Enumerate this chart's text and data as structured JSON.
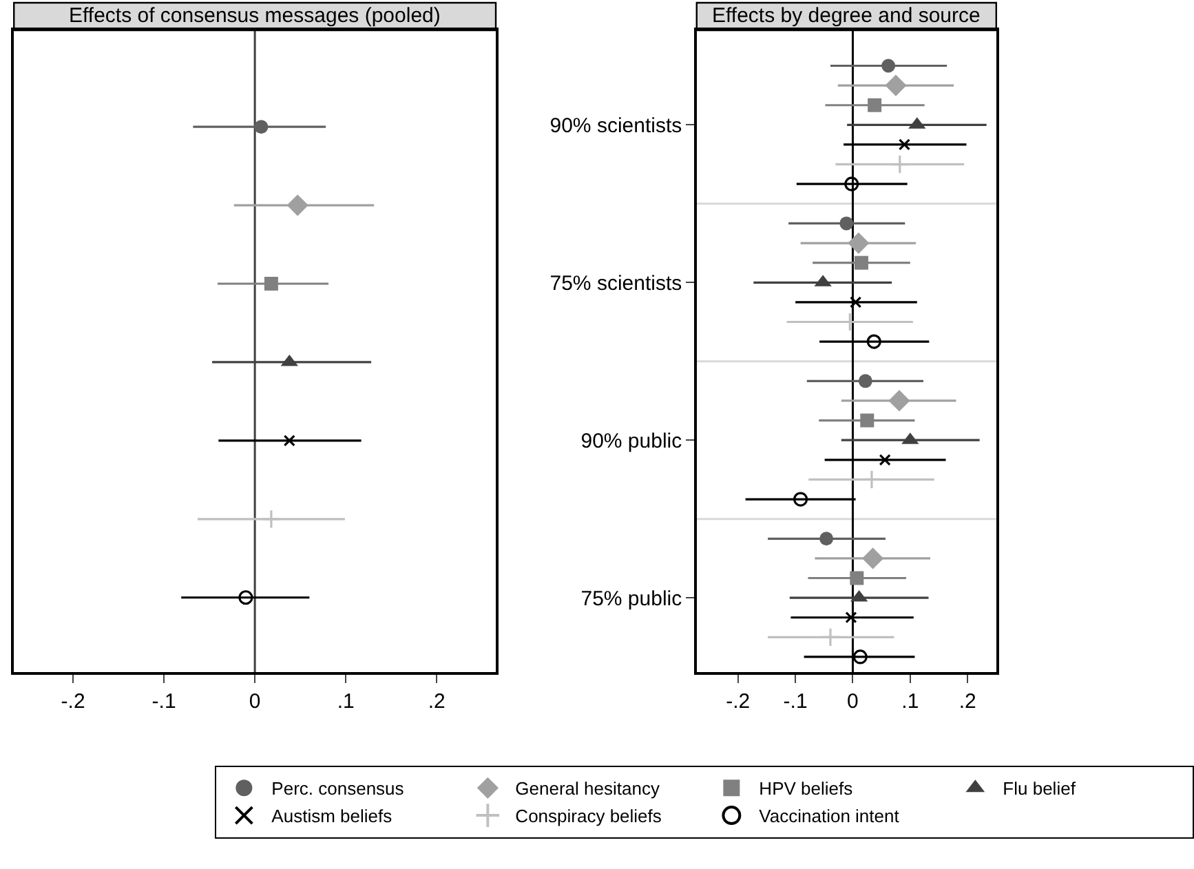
{
  "chart_data": [
    {
      "type": "scatter",
      "title": "Effects of consensus messages (pooled)",
      "orientation": "horizontal",
      "categories": [
        null
      ],
      "tick_labels": "x",
      "grid": false,
      "legend": "bottom",
      "xlim": [
        -0.265,
        0.265
      ],
      "xticks": [
        {
          "value": -0.2,
          "label": "-.2"
        },
        {
          "value": -0.1,
          "label": "-.1"
        },
        0,
        {
          "value": 0.1,
          "label": ".1"
        },
        {
          "value": 0.2,
          "label": ".2"
        }
      ],
      "ref_lines": [
        {
          "axis": "x",
          "value": 0,
          "color": "#404040"
        }
      ],
      "series": [
        {
          "name": "Perc. consensus",
          "color": "#606060",
          "marker": "circle",
          "values": [
            0.007
          ],
          "errors": [
            [
              -0.068,
              0.078
            ]
          ]
        },
        {
          "name": "General hesitancy",
          "color": "#a0a0a0",
          "marker": "diamond",
          "values": [
            0.047
          ],
          "errors": [
            [
              -0.023,
              0.131
            ]
          ]
        },
        {
          "name": "HPV beliefs",
          "color": "#808080",
          "marker": "square",
          "values": [
            0.018
          ],
          "errors": [
            [
              -0.041,
              0.081
            ]
          ]
        },
        {
          "name": "Flu belief",
          "color": "#404040",
          "marker": "triangle",
          "values": [
            0.038
          ],
          "errors": [
            [
              -0.047,
              0.128
            ]
          ]
        },
        {
          "name": "Austism beliefs",
          "color": "#000000",
          "marker": "cross",
          "values": [
            0.038
          ],
          "errors": [
            [
              -0.04,
              0.117
            ]
          ]
        },
        {
          "name": "Conspiracy beliefs",
          "color": "#c0c0c0",
          "marker": "plus",
          "values": [
            0.018
          ],
          "errors": [
            [
              -0.063,
              0.099
            ]
          ]
        },
        {
          "name": "Vaccination intent",
          "color": "#000000",
          "marker": "circle-open",
          "values": [
            -0.01
          ],
          "errors": [
            [
              -0.081,
              0.06
            ]
          ]
        }
      ]
    },
    {
      "type": "scatter",
      "title": "Effects by degree and source",
      "orientation": "horizontal",
      "categories": [
        "90% scientists",
        "75% scientists",
        "90% public",
        "75% public"
      ],
      "grid": false,
      "xlim": [
        -0.272,
        0.25
      ],
      "xticks": [
        {
          "value": -0.2,
          "label": "-.2"
        },
        {
          "value": -0.1,
          "label": "-.1"
        },
        0,
        {
          "value": 0.1,
          "label": ".1"
        },
        {
          "value": 0.2,
          "label": ".2"
        }
      ],
      "ref_lines": [
        {
          "axis": "x",
          "value": 0,
          "color": "#000000"
        }
      ],
      "series": [
        {
          "color": "#606060",
          "marker": "circle",
          "values": [
            0.062,
            -0.011,
            0.022,
            -0.046
          ],
          "errors": [
            [
              -0.039,
              0.164
            ],
            [
              -0.112,
              0.091
            ],
            [
              -0.08,
              0.123
            ],
            [
              -0.148,
              0.057
            ]
          ]
        },
        {
          "color": "#a0a0a0",
          "marker": "diamond",
          "values": [
            0.075,
            0.01,
            0.081,
            0.035
          ],
          "errors": [
            [
              -0.026,
              0.176
            ],
            [
              -0.091,
              0.11
            ],
            [
              -0.02,
              0.18
            ],
            [
              -0.066,
              0.135
            ]
          ]
        },
        {
          "color": "#808080",
          "marker": "square",
          "values": [
            0.038,
            0.015,
            0.025,
            0.007
          ],
          "errors": [
            [
              -0.048,
              0.125
            ],
            [
              -0.07,
              0.1
            ],
            [
              -0.059,
              0.108
            ],
            [
              -0.078,
              0.093
            ]
          ]
        },
        {
          "color": "#404040",
          "marker": "triangle",
          "values": [
            0.112,
            -0.052,
            0.1,
            0.011
          ],
          "errors": [
            [
              -0.01,
              0.233
            ],
            [
              -0.173,
              0.068
            ],
            [
              -0.02,
              0.221
            ],
            [
              -0.11,
              0.132
            ]
          ]
        },
        {
          "color": "#000000",
          "marker": "cross",
          "values": [
            0.09,
            0.005,
            0.056,
            -0.003
          ],
          "errors": [
            [
              -0.016,
              0.198
            ],
            [
              -0.1,
              0.112
            ],
            [
              -0.049,
              0.162
            ],
            [
              -0.108,
              0.106
            ]
          ]
        },
        {
          "color": "#c0c0c0",
          "marker": "plus",
          "values": [
            0.082,
            -0.005,
            0.033,
            -0.039
          ],
          "errors": [
            [
              -0.03,
              0.194
            ],
            [
              -0.115,
              0.105
            ],
            [
              -0.077,
              0.142
            ],
            [
              -0.148,
              0.072
            ]
          ]
        },
        {
          "color": "#000000",
          "marker": "circle-open",
          "values": [
            -0.002,
            0.037,
            -0.091,
            0.013
          ],
          "errors": [
            [
              -0.098,
              0.095
            ],
            [
              -0.058,
              0.133
            ],
            [
              -0.187,
              0.005
            ],
            [
              -0.085,
              0.108
            ]
          ]
        }
      ]
    }
  ]
}
